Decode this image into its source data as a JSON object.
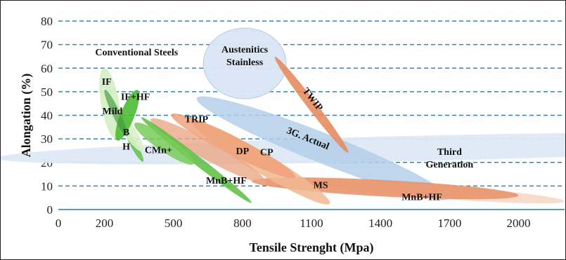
{
  "chart_data": {
    "type": "area",
    "title": "",
    "xlabel": "Tensile Strenght (Mpa)",
    "ylabel": "Alongation (%)",
    "xlim": [
      0,
      2200
    ],
    "ylim": [
      0,
      80
    ],
    "xticks": [
      0,
      200,
      500,
      800,
      1100,
      1400,
      1700,
      2000
    ],
    "yticks": [
      0,
      10,
      20,
      30,
      40,
      50,
      60,
      70,
      80
    ],
    "grid": "horizontal dashed",
    "group_label": "Conventional Steels",
    "regions": [
      {
        "name": "Third Generation",
        "label": "Third\nGeneration",
        "center": [
          1580,
          26
        ],
        "major": [
          1850,
          4
        ],
        "minor": [
          60,
          5.5
        ],
        "color": "#dde9f6",
        "opacity": 0.95,
        "label_at": [
          1700,
          20.5
        ]
      },
      {
        "name": "3G. Actual",
        "label": "3G. Actual",
        "center": [
          1150,
          26
        ],
        "major": [
          550,
          -21
        ],
        "minor": [
          0,
          6.8
        ],
        "color": "#b4cfe9",
        "opacity": 0.85,
        "label_at": [
          1080,
          29
        ],
        "rotate": 22
      },
      {
        "name": "Austenitics Stainless",
        "label": "Austenitics\nStainless",
        "center": [
          810,
          62
        ],
        "major": [
          180,
          0
        ],
        "minor": [
          0,
          15
        ],
        "color": "#d9e6f3",
        "opacity": 0.95,
        "stroke": "#b8cbe0",
        "label_at": [
          810,
          64
        ]
      },
      {
        "name": "TWIP",
        "label": "TWIP",
        "center": [
          1100,
          44.5
        ],
        "major": [
          160,
          -20
        ],
        "minor": [
          -6,
          4
        ],
        "color": "#e68c5e",
        "opacity": 0.9,
        "label_at": [
          1095,
          46
        ],
        "rotate": 52
      },
      {
        "name": "MnB+HF (high)",
        "label": "MnB+HF",
        "center": [
          1650,
          7.5
        ],
        "major": [
          550,
          -4
        ],
        "minor": [
          0,
          2.8
        ],
        "color": "#f8d9c7",
        "opacity": 0.95,
        "label_at": [
          1580,
          4
        ]
      },
      {
        "name": "MS",
        "label": "MS",
        "center": [
          1420,
          9
        ],
        "major": [
          580,
          -3
        ],
        "minor": [
          0,
          3.5
        ],
        "color": "#e8956b",
        "opacity": 0.9,
        "label_at": [
          1140,
          9
        ]
      },
      {
        "name": "CP",
        "label": "CP",
        "center": [
          880,
          20
        ],
        "major": [
          300,
          -17
        ],
        "minor": [
          -8,
          5.5
        ],
        "color": "#f1b793",
        "opacity": 0.85,
        "label_at": [
          905,
          23
        ]
      },
      {
        "name": "TRIP",
        "label": "TRIP",
        "center": [
          760,
          27
        ],
        "major": [
          270,
          -13
        ],
        "minor": [
          -5,
          4.5
        ],
        "color": "#eea27a",
        "opacity": 0.85,
        "label_at": [
          600,
          37
        ]
      },
      {
        "name": "DP",
        "label": "DP",
        "center": [
          650,
          25
        ],
        "major": [
          250,
          -13
        ],
        "minor": [
          -3,
          4.5
        ],
        "color": "#eba887",
        "opacity": 0.8,
        "label_at": [
          800,
          23.5
        ]
      },
      {
        "name": "MnB+HF (low)",
        "label": "MnB+HF",
        "center": [
          600,
          21
        ],
        "major": [
          240,
          -18
        ],
        "minor": [
          -6,
          2.8
        ],
        "color": "#5cbe3e",
        "opacity": 0.85,
        "label_at": [
          730,
          11
        ]
      },
      {
        "name": "CMn+",
        "label": "CMn+",
        "center": [
          460,
          28
        ],
        "major": [
          130,
          -8
        ],
        "minor": [
          -3,
          4
        ],
        "color": "#7acb58",
        "opacity": 0.85,
        "label_at": [
          435,
          24
        ]
      },
      {
        "name": "H",
        "label": "H",
        "center": [
          330,
          27
        ],
        "major": [
          40,
          -6
        ],
        "minor": [
          -2,
          3
        ],
        "color": "#63c247",
        "opacity": 0.85,
        "label_at": [
          295,
          25.5
        ]
      },
      {
        "name": "B",
        "label": "B",
        "center": [
          310,
          33
        ],
        "major": [
          60,
          -7
        ],
        "minor": [
          -2,
          4.5
        ],
        "color": "#d8efc8",
        "opacity": 0.9,
        "label_at": [
          295,
          31.5
        ]
      },
      {
        "name": "IF",
        "label": "IF",
        "center": [
          225,
          45
        ],
        "major": [
          25,
          -15
        ],
        "minor": [
          -40,
          0
        ],
        "color": "#d6efc6",
        "opacity": 0.95,
        "label_at": [
          210,
          53
        ]
      },
      {
        "name": "IF+HF",
        "label": "IF+HF",
        "center": [
          300,
          40
        ],
        "major": [
          50,
          10
        ],
        "minor": [
          15,
          -4
        ],
        "color": "#4cba34",
        "opacity": 0.9,
        "label_at": [
          335,
          46.5
        ]
      },
      {
        "name": "Mild",
        "label": "Mild",
        "center": [
          250,
          41
        ],
        "major": [
          50,
          -9
        ],
        "minor": [
          -2,
          4
        ],
        "color": "#3f9a3a",
        "opacity": 0.65,
        "label_at": [
          235,
          40.5
        ]
      }
    ],
    "colors": {
      "axis": "#1c7f94",
      "grid": "#2e86b5",
      "text": "#111111"
    }
  }
}
